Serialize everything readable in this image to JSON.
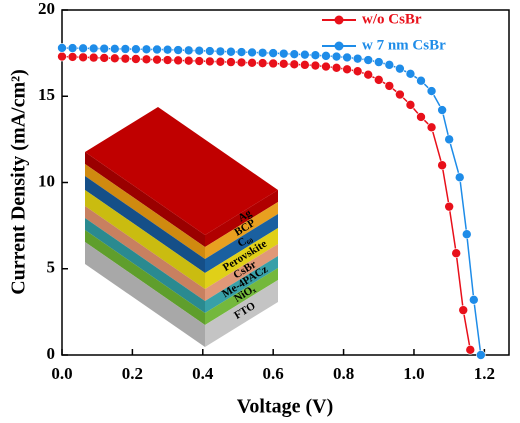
{
  "chart_data": {
    "type": "line",
    "xlabel": "Voltage (V)",
    "ylabel": "Current Density (mA/cm²)",
    "xlim": [
      0,
      1.27
    ],
    "ylim": [
      0,
      20
    ],
    "xticks": [
      {
        "value": 0,
        "label": "0.0"
      },
      {
        "value": 0.2,
        "label": "0.2"
      },
      {
        "value": 0.4,
        "label": "0.4"
      },
      {
        "value": 0.6,
        "label": "0.6"
      },
      {
        "value": 0.8,
        "label": "0.8"
      },
      {
        "value": 1.0,
        "label": "1.0"
      },
      {
        "value": 1.2,
        "label": "1.2"
      }
    ],
    "yticks": [
      0,
      5,
      10,
      15,
      20
    ],
    "legend": "upper right",
    "series": [
      {
        "name": "w/o CsBr",
        "color": "#e8101a",
        "x": [
          0,
          0.03,
          0.06,
          0.09,
          0.12,
          0.15,
          0.18,
          0.21,
          0.24,
          0.27,
          0.3,
          0.33,
          0.36,
          0.39,
          0.42,
          0.45,
          0.48,
          0.51,
          0.54,
          0.57,
          0.6,
          0.63,
          0.66,
          0.69,
          0.72,
          0.75,
          0.78,
          0.81,
          0.84,
          0.87,
          0.9,
          0.93,
          0.96,
          0.99,
          1.02,
          1.05,
          1.08,
          1.1,
          1.12,
          1.14,
          1.16
        ],
        "values": [
          17.3,
          17.28,
          17.26,
          17.24,
          17.22,
          17.2,
          17.18,
          17.16,
          17.14,
          17.12,
          17.1,
          17.08,
          17.06,
          17.04,
          17.02,
          17.0,
          16.98,
          16.96,
          16.94,
          16.92,
          16.9,
          16.88,
          16.85,
          16.82,
          16.78,
          16.72,
          16.65,
          16.56,
          16.45,
          16.25,
          15.95,
          15.6,
          15.1,
          14.5,
          13.8,
          13.2,
          11.0,
          8.6,
          5.9,
          2.6,
          0.3
        ]
      },
      {
        "name": "w 7 nm CsBr",
        "color": "#1e8ce8",
        "x": [
          0,
          0.03,
          0.06,
          0.09,
          0.12,
          0.15,
          0.18,
          0.21,
          0.24,
          0.27,
          0.3,
          0.33,
          0.36,
          0.39,
          0.42,
          0.45,
          0.48,
          0.51,
          0.54,
          0.57,
          0.6,
          0.63,
          0.66,
          0.69,
          0.72,
          0.75,
          0.78,
          0.81,
          0.84,
          0.87,
          0.9,
          0.93,
          0.96,
          0.99,
          1.02,
          1.05,
          1.08,
          1.1,
          1.13,
          1.15,
          1.17,
          1.19
        ],
        "values": [
          17.8,
          17.79,
          17.78,
          17.77,
          17.76,
          17.75,
          17.74,
          17.73,
          17.72,
          17.71,
          17.7,
          17.68,
          17.66,
          17.64,
          17.62,
          17.6,
          17.58,
          17.56,
          17.54,
          17.52,
          17.5,
          17.47,
          17.44,
          17.41,
          17.38,
          17.34,
          17.3,
          17.25,
          17.18,
          17.1,
          16.98,
          16.82,
          16.6,
          16.3,
          15.9,
          15.3,
          14.2,
          12.5,
          10.3,
          7.0,
          3.2,
          0
        ]
      }
    ],
    "inset": {
      "layers": [
        "Ag",
        "BCP",
        "C₆₀",
        "Perovskite",
        "CsBr",
        "Me-4PACz",
        "NiOₓ",
        "FTO"
      ]
    }
  }
}
